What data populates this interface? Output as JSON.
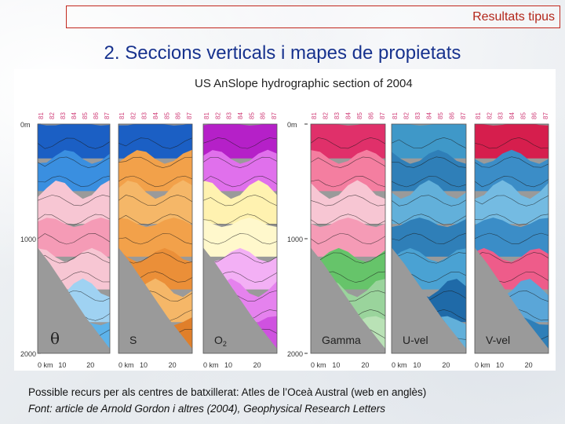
{
  "header": {
    "title": "Resultats tipus"
  },
  "page": {
    "title": "2. Seccions verticals i mapes de propietats"
  },
  "figure": {
    "title": "US AnSlope hydrographic section of 2004",
    "stations_a": [
      "81",
      "82",
      "83",
      "84",
      "85",
      "86",
      "87"
    ],
    "stations_b": [
      "81",
      "82",
      "83",
      "84",
      "85",
      "86",
      "87"
    ],
    "stations_c": [
      "81",
      "82",
      "83",
      "84",
      "85",
      "86",
      "87"
    ],
    "depth_labels": [
      "0m",
      "1000",
      "2000"
    ],
    "distance_labels": [
      "0 km",
      "10",
      "20"
    ],
    "panels": [
      {
        "label": "θ"
      },
      {
        "label": "S"
      },
      {
        "label": "O2"
      },
      {
        "label": "Gamma"
      },
      {
        "label": "U-vel"
      },
      {
        "label": "V-vel"
      }
    ]
  },
  "caption": {
    "line1": "Possible recurs per als centres de batxillerat: Atles de l’Oceà Austral (web en anglès)",
    "line2": "Font: article de Arnold Gordon i altres (2004), Geophysical Research Letters"
  }
}
